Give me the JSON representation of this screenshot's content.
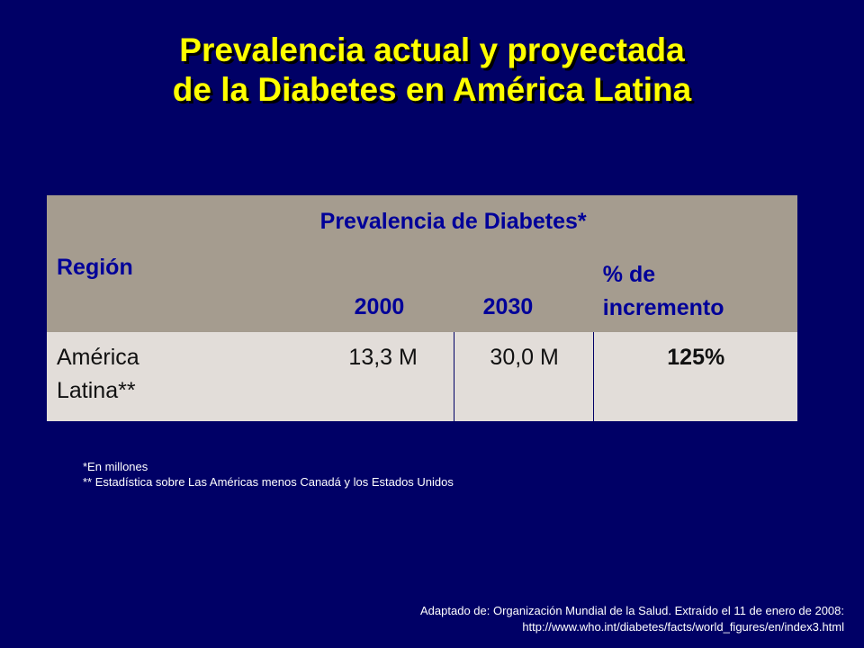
{
  "slide": {
    "title_line1": "Prevalencia actual y proyectada",
    "title_line2": "de la Diabetes en América Latina"
  },
  "table": {
    "header": {
      "region": "Región",
      "prevalence": "Prevalencia de Diabetes*",
      "year_2000": "2000",
      "year_2030": "2030",
      "increase_line1": "% de",
      "increase_line2": "incremento"
    },
    "rows": [
      {
        "region_line1": "América",
        "region_line2": "Latina**",
        "value_2000": "13,3 M",
        "value_2030": "30,0 M",
        "increase": "125%"
      }
    ]
  },
  "notes": {
    "note1": "*En millones",
    "note2": "** Estadística sobre Las Américas menos Canadá y los Estados Unidos"
  },
  "source": {
    "line1": "Adaptado de:  Organización Mundial de la Salud.  Extraído el 11 de enero de 2008:",
    "line2": "http://www.who.int/diabetes/facts/world_figures/en/index3.html"
  },
  "colors": {
    "background": "#000066",
    "title": "#ffff00",
    "header_bg": "#a59c8f",
    "header_text": "#000099",
    "row_bg": "#e2ddd9"
  }
}
